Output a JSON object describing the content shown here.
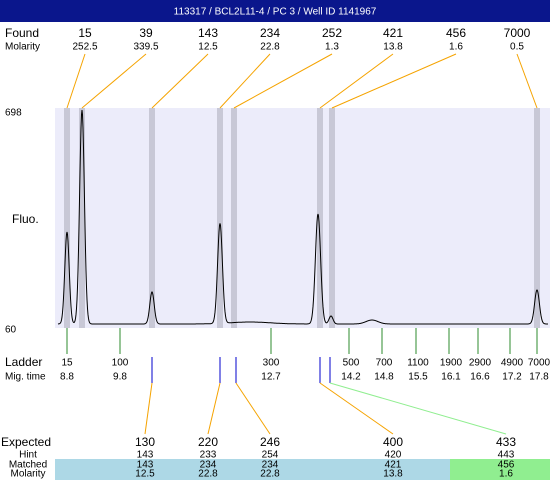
{
  "header": {
    "title": "113317 / BCL2L11-4 / PC 3 / Well ID 1141967"
  },
  "found": {
    "label": "Found",
    "sublabel": "Molarity",
    "peaks": [
      {
        "size": 15,
        "molarity": 252.5
      },
      {
        "size": 39,
        "molarity": 339.5
      },
      {
        "size": 143,
        "molarity": 12.5
      },
      {
        "size": 234,
        "molarity": 22.8
      },
      {
        "size": 252,
        "molarity": 1.3
      },
      {
        "size": 421,
        "molarity": 13.8
      },
      {
        "size": 456,
        "molarity": 1.6
      },
      {
        "size": 7000,
        "molarity": 0.5
      }
    ]
  },
  "plot": {
    "y_label": "Fluo.",
    "y_max": 698,
    "y_min": 60
  },
  "ladder": {
    "label": "Ladder",
    "sublabel": "Mig. time",
    "peaks": [
      {
        "size": 15,
        "time": 8.8
      },
      {
        "size": 100,
        "time": 9.8
      },
      {
        "size": 300,
        "time": 12.7
      },
      {
        "size": 500,
        "time": 14.2
      },
      {
        "size": 700,
        "time": 14.8
      },
      {
        "size": 1100,
        "time": 15.5
      },
      {
        "size": 1900,
        "time": 16.1
      },
      {
        "size": 2900,
        "time": 16.6
      },
      {
        "size": 4900,
        "time": 17.2
      },
      {
        "size": 7000,
        "time": 17.8
      }
    ]
  },
  "expected": {
    "labels": [
      "Expected",
      "Hint",
      "Matched",
      "Molarity"
    ],
    "columns": [
      {
        "expected": 130,
        "hint": 143,
        "matched": 143,
        "molarity": 12.5
      },
      {
        "expected": 220,
        "hint": 233,
        "matched": 234,
        "molarity": 22.8
      },
      {
        "expected": 246,
        "hint": 254,
        "matched": 234,
        "molarity": 22.8
      },
      {
        "expected": 400,
        "hint": 420,
        "matched": 421,
        "molarity": 13.8
      },
      {
        "expected": 433,
        "hint": 443,
        "matched": 456,
        "molarity": 1.6
      }
    ]
  }
}
